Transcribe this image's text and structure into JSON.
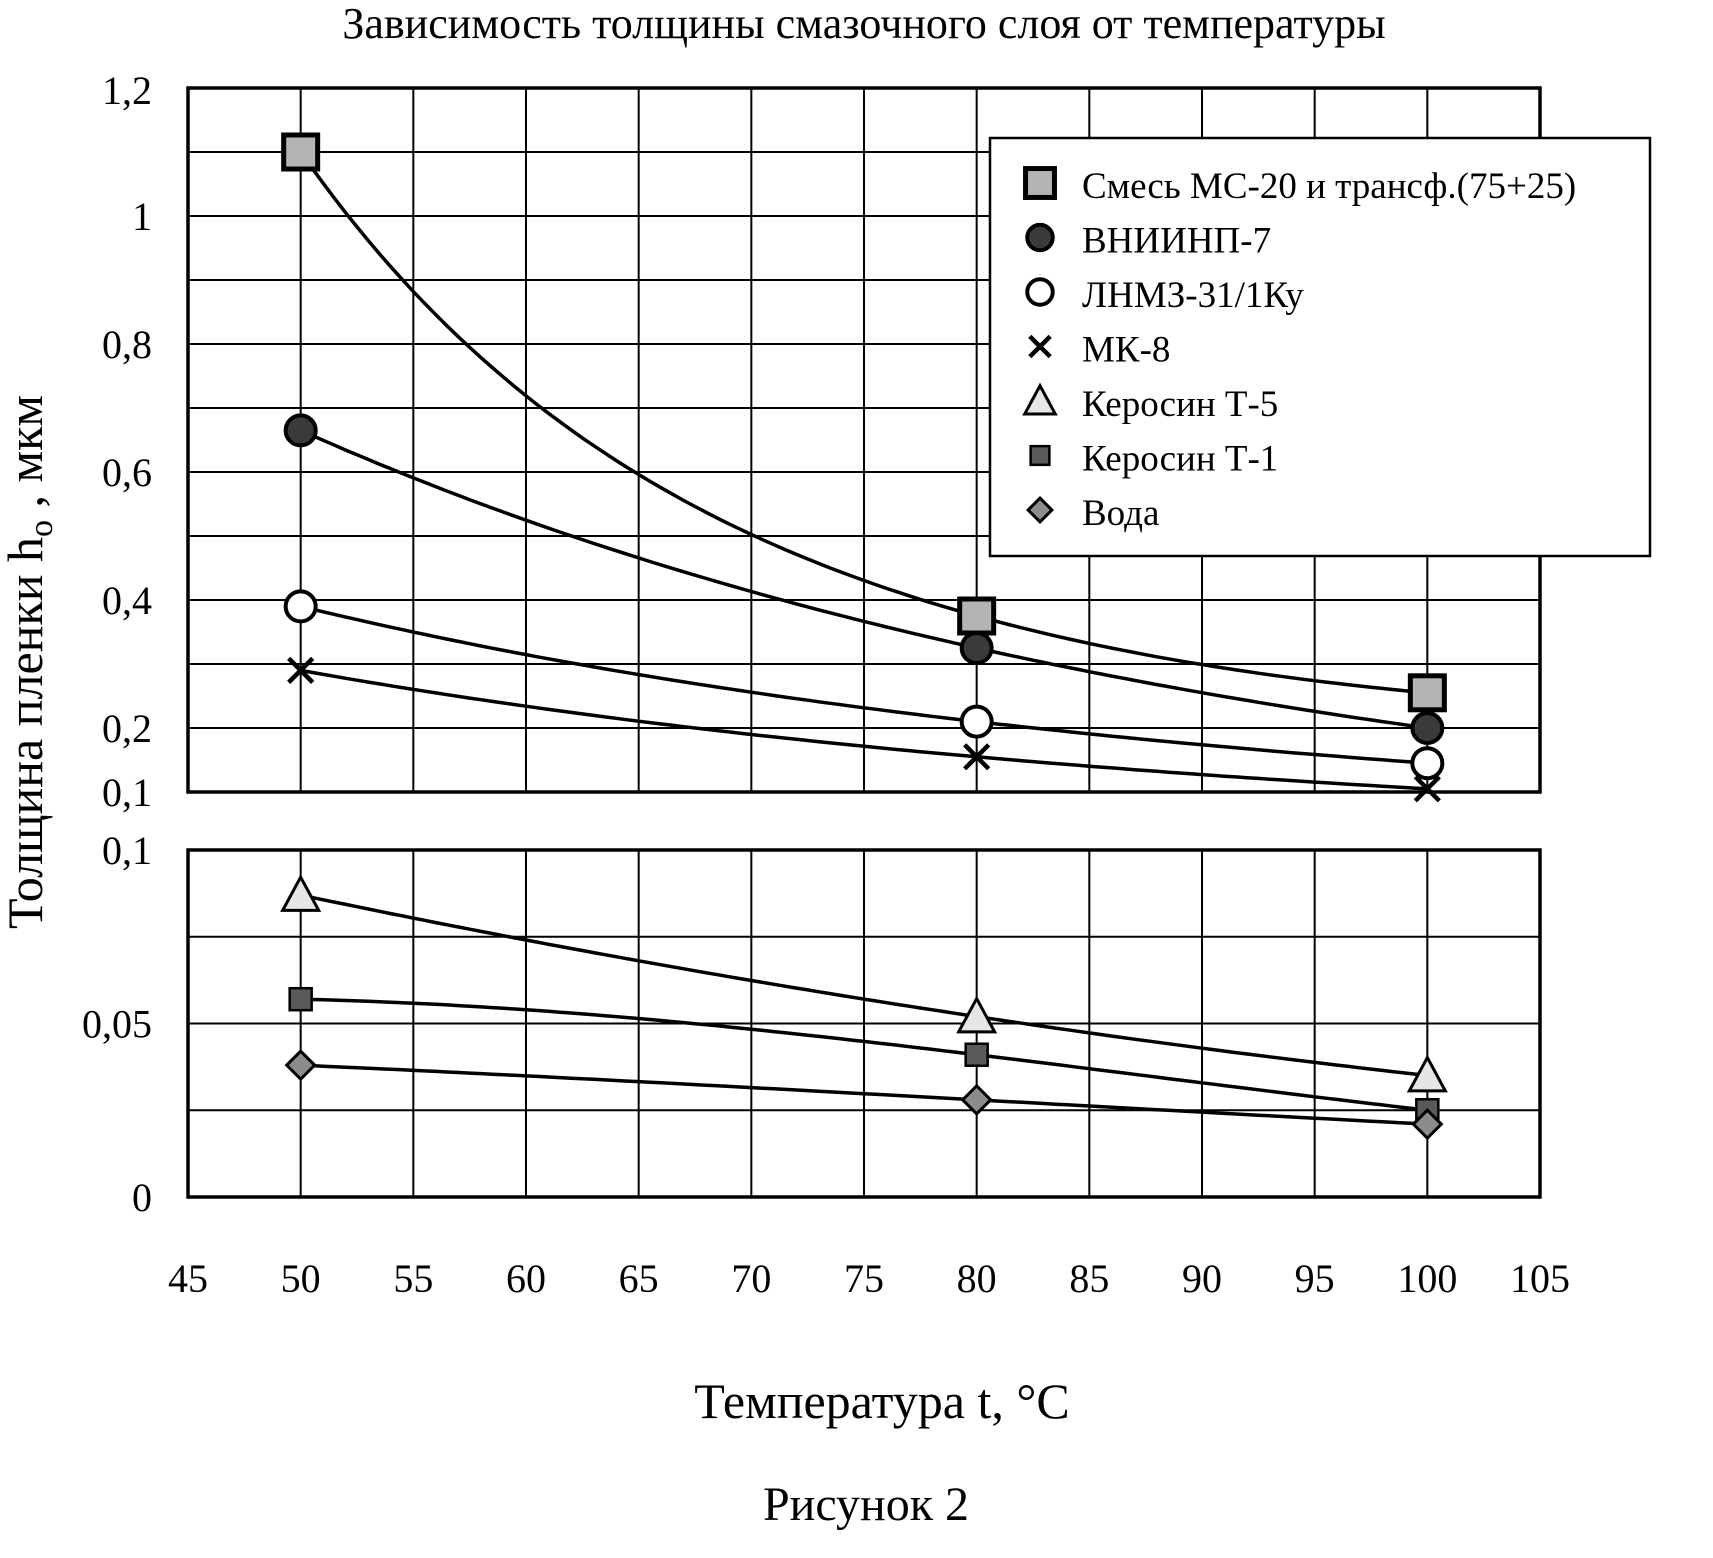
{
  "chart_data": {
    "type": "scatter",
    "title": "Зависимость толщины смазочного слоя от температуры",
    "xlabel": "Температура  t, °C",
    "ylabel": "Толщина пленки  h",
    "ylabel_sub": "o",
    "ylabel_unit": " , мкм",
    "caption": "Рисунок 2",
    "xlim": [
      45,
      105
    ],
    "x_ticks": [
      "45",
      "50",
      "55",
      "60",
      "65",
      "70",
      "75",
      "80",
      "85",
      "90",
      "95",
      "100",
      "105"
    ],
    "grid": true,
    "legend_position": "top-right",
    "panels": [
      {
        "name": "upper",
        "ylim": [
          0.1,
          1.2
        ],
        "y_ticks": [
          {
            "value": 1.2,
            "label": "1,2"
          },
          {
            "value": 1.0,
            "label": "1"
          },
          {
            "value": 0.8,
            "label": "0,8"
          },
          {
            "value": 0.6,
            "label": "0,6"
          },
          {
            "value": 0.4,
            "label": "0,4"
          },
          {
            "value": 0.2,
            "label": "0,2"
          },
          {
            "value": 0.1,
            "label": "0,1"
          }
        ],
        "series": [
          0,
          1,
          2,
          3
        ]
      },
      {
        "name": "lower",
        "ylim": [
          0,
          0.1
        ],
        "y_ticks": [
          {
            "value": 0.1,
            "label": "0,1"
          },
          {
            "value": 0.05,
            "label": "0,05"
          },
          {
            "value": 0,
            "label": "0"
          }
        ],
        "series": [
          4,
          5,
          6
        ]
      }
    ],
    "series": [
      {
        "name": "Смесь МС-20 и трансф.(75+25)",
        "marker": "square",
        "fill": "#b4b4b4",
        "x": [
          50,
          80,
          100
        ],
        "y": [
          1.1,
          0.375,
          0.255
        ]
      },
      {
        "name": "ВНИИНП-7",
        "marker": "circle",
        "fill": "#3a3a3a",
        "x": [
          50,
          80,
          100
        ],
        "y": [
          0.665,
          0.325,
          0.2
        ]
      },
      {
        "name": "ЛНМЗ-31/1Ку",
        "marker": "circle",
        "fill": "#ffffff",
        "x": [
          50,
          80,
          100
        ],
        "y": [
          0.39,
          0.21,
          0.145
        ]
      },
      {
        "name": "МК-8",
        "marker": "cross",
        "fill": "#000000",
        "x": [
          50,
          80,
          100
        ],
        "y": [
          0.29,
          0.155,
          0.105
        ]
      },
      {
        "name": "Керосин Т-5",
        "marker": "triangle",
        "fill": "#e6e6e6",
        "x": [
          50,
          80,
          100
        ],
        "y": [
          0.087,
          0.052,
          0.035
        ]
      },
      {
        "name": "Керосин Т-1",
        "marker": "square-small",
        "fill": "#5a5a5a",
        "x": [
          50,
          80,
          100
        ],
        "y": [
          0.057,
          0.041,
          0.025
        ]
      },
      {
        "name": "Вода",
        "marker": "diamond",
        "fill": "#8c8c8c",
        "x": [
          50,
          80,
          100
        ],
        "y": [
          0.038,
          0.028,
          0.021
        ]
      }
    ]
  }
}
